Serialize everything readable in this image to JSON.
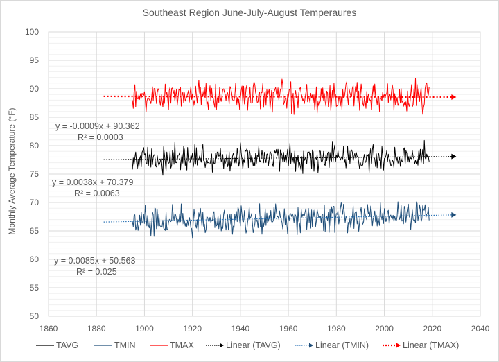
{
  "chart_data": {
    "type": "line",
    "title": "Southeast Region June-July-August Temperaures",
    "xlabel": "",
    "ylabel": "Monthly Average Temperature (°F)",
    "xlim": [
      1860,
      2040
    ],
    "ylim": [
      50,
      100
    ],
    "x_ticks": [
      1860,
      1880,
      1900,
      1920,
      1940,
      1960,
      1980,
      2000,
      2020,
      2040
    ],
    "y_ticks": [
      50,
      55,
      60,
      65,
      70,
      75,
      80,
      85,
      90,
      95,
      100
    ],
    "grid": true,
    "legend_position": "bottom",
    "start_year": 1895,
    "end_year": 2018,
    "months_per_year": 3,
    "series": [
      {
        "name": "TAVG",
        "color": "#000000",
        "style": "solid",
        "mean": 77.8,
        "amplitude": 2.2
      },
      {
        "name": "TMIN",
        "color": "#1f4e79",
        "style": "solid",
        "mean": 67.0,
        "amplitude": 2.4
      },
      {
        "name": "TMAX",
        "color": "#ff0000",
        "style": "solid",
        "mean": 88.6,
        "amplitude": 2.4
      }
    ],
    "trendlines": [
      {
        "name": "Linear (TAVG)",
        "color": "#000000",
        "slope": 0.0038,
        "intercept": 70.379,
        "r2": 0.0063,
        "x_start": 1883,
        "x_end": 2030
      },
      {
        "name": "Linear (TMIN)",
        "color": "#2e75b6",
        "slope": 0.0085,
        "intercept": 50.563,
        "r2": 0.025,
        "x_start": 1883,
        "x_end": 2030
      },
      {
        "name": "Linear (TMAX)",
        "color": "#ff0000",
        "slope": -0.0009,
        "intercept": 90.362,
        "r2": 0.0003,
        "x_start": 1883,
        "x_end": 2030
      }
    ],
    "annotations": [
      {
        "eq": "y = -0.0009x + 90.362",
        "r2": "R² = 0.0003"
      },
      {
        "eq": "y = 0.0038x + 70.379",
        "r2": "R² = 0.0063"
      },
      {
        "eq": "y = 0.0085x + 50.563",
        "r2": "R² = 0.025"
      }
    ]
  },
  "legend": {
    "items": [
      "TAVG",
      "TMIN",
      "TMAX",
      "Linear (TAVG)",
      "Linear (TMIN)",
      "Linear (TMAX)"
    ]
  }
}
